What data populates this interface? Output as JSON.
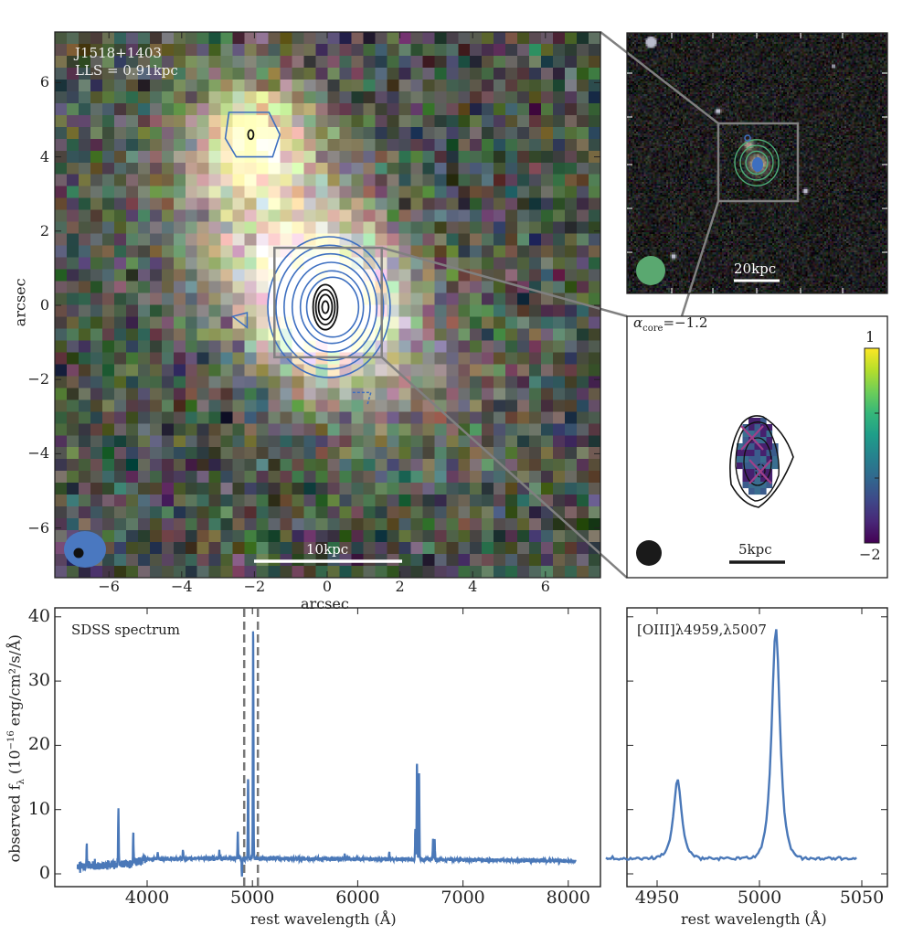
{
  "figure": {
    "main_panel": {
      "source_label": "J1518+1403",
      "lls_label": "LLS = 0.91kpc",
      "scale_bar_label": "10kpc",
      "xlabel": "arcsec",
      "ylabel": "arcsec",
      "xticks": [
        "−6",
        "−4",
        "−2",
        "0",
        "2",
        "4",
        "6"
      ],
      "yticks": [
        "6",
        "4",
        "2",
        "0",
        "−2",
        "−4",
        "−6"
      ],
      "tick_values": [
        -6,
        -4,
        -2,
        0,
        2,
        4,
        6
      ],
      "range": [
        -7.5,
        7.5
      ]
    },
    "top_inset": {
      "scale_bar_label": "20kpc"
    },
    "spectral_index_inset": {
      "alpha_label_symbol": "α",
      "alpha_label_sub": "core",
      "alpha_label_value": "=−1.2",
      "colorbar_max": "1",
      "colorbar_min": "−2",
      "scale_bar_label": "5kpc"
    },
    "colors": {
      "spectrum": "#4a78b8",
      "contour_blue": "#3d6fc0",
      "contour_green": "#4fb07a",
      "box": "#808080",
      "beam_blue": "#4a78c0",
      "beam_green": "#5aa870"
    }
  },
  "chart_data": [
    {
      "type": "line",
      "title": "SDSS spectrum",
      "xlabel": "rest wavelength (Å)",
      "ylabel": "observed f",
      "ylabel_sub": "λ",
      "ylabel_units": " (10",
      "ylabel_exp": "−16",
      "ylabel_tail": " erg/cm²/s/Å)",
      "xlim": [
        3150,
        8180
      ],
      "ylim": [
        -2.4,
        40.5
      ],
      "xticks": [
        4000,
        5000,
        6000,
        7000,
        8000
      ],
      "yticks": [
        0,
        10,
        20,
        30,
        40
      ],
      "x_range_data": [
        3340,
        8070
      ],
      "continuum": {
        "x": [
          3340,
          3600,
          3900,
          4000,
          4500,
          5000,
          6000,
          7000,
          8070
        ],
        "y": [
          1.2,
          1.3,
          1.8,
          2.3,
          2.4,
          2.4,
          2.3,
          2.2,
          2.0
        ]
      },
      "emission_lines": [
        {
          "x": 3426,
          "peak": 4.4
        },
        {
          "x": 3727,
          "peak": 10.0
        },
        {
          "x": 3869,
          "peak": 6.3
        },
        {
          "x": 3968,
          "peak": 3.0
        },
        {
          "x": 4101,
          "peak": 3.4
        },
        {
          "x": 4340,
          "peak": 3.8
        },
        {
          "x": 4686,
          "peak": 3.6
        },
        {
          "x": 4861,
          "peak": 6.3
        },
        {
          "x": 4959,
          "peak": 14.8
        },
        {
          "x": 5007,
          "peak": 38.3
        },
        {
          "x": 5876,
          "peak": 3.1
        },
        {
          "x": 6300,
          "peak": 3.5
        },
        {
          "x": 6548,
          "peak": 7.0
        },
        {
          "x": 6563,
          "peak": 17.3
        },
        {
          "x": 6583,
          "peak": 15.6
        },
        {
          "x": 6716,
          "peak": 5.4
        },
        {
          "x": 6731,
          "peak": 5.4
        }
      ],
      "absorption_dip": {
        "x": 4900,
        "value": -0.4
      },
      "dashed_lines": [
        4922,
        5052
      ]
    },
    {
      "type": "line",
      "title": "[OIII]λ4959,λ5007",
      "xlabel": "rest wavelength (Å)",
      "xlim": [
        4935,
        5054
      ],
      "ylim": [
        -2.4,
        40.5
      ],
      "xticks": [
        4950,
        5000,
        5050
      ],
      "x_range_data": [
        4925,
        5048
      ],
      "continuum_level": 2.4,
      "emission_lines": [
        {
          "x": 4960,
          "peak": 14.7
        },
        {
          "x": 5008,
          "peak": 38.3
        }
      ]
    }
  ]
}
